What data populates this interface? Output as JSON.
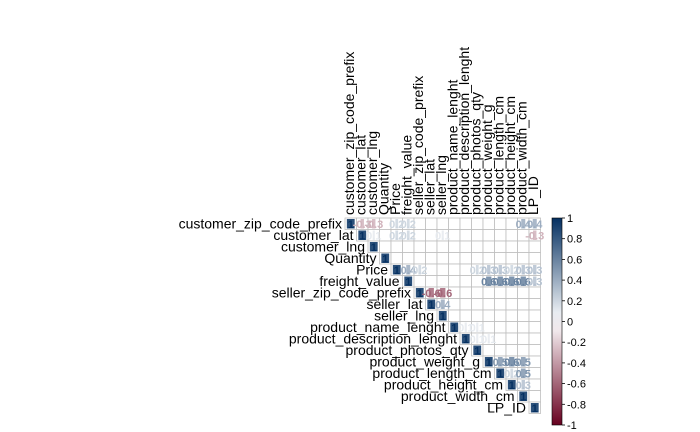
{
  "chart_data": {
    "type": "heatmap",
    "title": "",
    "layout": "upper-triangle",
    "variables": [
      "customer_zip_code_prefix",
      "customer_lat",
      "customer_lng",
      "Quantity",
      "Price",
      "freight_value",
      "seller_zip_code_prefix",
      "seller_lat",
      "seller_lng",
      "product_name_lenght",
      "product_description_lenght",
      "product_photos_qty",
      "product_weight_g",
      "product_length_cm",
      "product_height_cm",
      "product_width_cm",
      "LP_ID"
    ],
    "cells": [
      {
        "row": 0,
        "col": 0,
        "value": 1,
        "label": "1"
      },
      {
        "row": 0,
        "col": 1,
        "value": -0.3,
        "label": "-0.3"
      },
      {
        "row": 0,
        "col": 2,
        "value": -0.3,
        "label": "-0.3"
      },
      {
        "row": 0,
        "col": 4,
        "value": 0.2,
        "label": "0.2"
      },
      {
        "row": 0,
        "col": 5,
        "value": 0.2,
        "label": "0.2"
      },
      {
        "row": 0,
        "col": 15,
        "value": 0.4,
        "label": "0.4"
      },
      {
        "row": 0,
        "col": 16,
        "value": 0.4,
        "label": "0.4"
      },
      {
        "row": 1,
        "col": 1,
        "value": 1,
        "label": "1"
      },
      {
        "row": 1,
        "col": 2,
        "value": 0.1,
        "label": "0.1"
      },
      {
        "row": 1,
        "col": 4,
        "value": 0.2,
        "label": "0.2"
      },
      {
        "row": 1,
        "col": 5,
        "value": 0.2,
        "label": "0.2"
      },
      {
        "row": 1,
        "col": 8,
        "value": 0.1,
        "label": "0.1"
      },
      {
        "row": 1,
        "col": 16,
        "value": -0.3,
        "label": "-0.3"
      },
      {
        "row": 2,
        "col": 2,
        "value": 1,
        "label": "1"
      },
      {
        "row": 3,
        "col": 3,
        "value": 1,
        "label": "1"
      },
      {
        "row": 4,
        "col": 4,
        "value": 1,
        "label": "1"
      },
      {
        "row": 4,
        "col": 5,
        "value": 0.4,
        "label": "0.4"
      },
      {
        "row": 4,
        "col": 6,
        "value": 0.2,
        "label": "0.2"
      },
      {
        "row": 4,
        "col": 11,
        "value": 0.2,
        "label": "0.2"
      },
      {
        "row": 4,
        "col": 12,
        "value": 0.3,
        "label": "0.3"
      },
      {
        "row": 4,
        "col": 13,
        "value": 0.3,
        "label": "0.3"
      },
      {
        "row": 4,
        "col": 14,
        "value": 0.2,
        "label": "0.2"
      },
      {
        "row": 4,
        "col": 15,
        "value": 0.3,
        "label": "0.3"
      },
      {
        "row": 4,
        "col": 16,
        "value": 0.3,
        "label": "0.3"
      },
      {
        "row": 5,
        "col": 5,
        "value": 1,
        "label": "1"
      },
      {
        "row": 5,
        "col": 12,
        "value": 0.6,
        "label": "0.6"
      },
      {
        "row": 5,
        "col": 13,
        "value": 0.6,
        "label": "0.6"
      },
      {
        "row": 5,
        "col": 14,
        "value": 0.6,
        "label": "0.6"
      },
      {
        "row": 5,
        "col": 15,
        "value": 0.6,
        "label": "0.6"
      },
      {
        "row": 5,
        "col": 16,
        "value": 0.3,
        "label": "0.3"
      },
      {
        "row": 6,
        "col": 6,
        "value": 1,
        "label": "1"
      },
      {
        "row": 6,
        "col": 7,
        "value": -0.6,
        "label": "-0.6"
      },
      {
        "row": 6,
        "col": 8,
        "value": -0.6,
        "label": "-0.6"
      },
      {
        "row": 7,
        "col": 7,
        "value": 1,
        "label": "1"
      },
      {
        "row": 7,
        "col": 8,
        "value": 0.4,
        "label": "0.4"
      },
      {
        "row": 8,
        "col": 8,
        "value": 1,
        "label": "1"
      },
      {
        "row": 9,
        "col": 9,
        "value": 1,
        "label": "1"
      },
      {
        "row": 9,
        "col": 10,
        "value": 0.1,
        "label": "0.1"
      },
      {
        "row": 9,
        "col": 11,
        "value": 0.1,
        "label": "0.1"
      },
      {
        "row": 10,
        "col": 10,
        "value": 1,
        "label": "1"
      },
      {
        "row": 10,
        "col": 11,
        "value": 0.1,
        "label": "0.1"
      },
      {
        "row": 10,
        "col": 12,
        "value": 0.1,
        "label": "0.1"
      },
      {
        "row": 11,
        "col": 11,
        "value": 1,
        "label": "1"
      },
      {
        "row": 12,
        "col": 12,
        "value": 1,
        "label": "1"
      },
      {
        "row": 12,
        "col": 13,
        "value": 0.5,
        "label": "0.5"
      },
      {
        "row": 12,
        "col": 14,
        "value": 0.6,
        "label": "0.6"
      },
      {
        "row": 12,
        "col": 15,
        "value": 0.5,
        "label": "0.5"
      },
      {
        "row": 13,
        "col": 13,
        "value": 1,
        "label": "1"
      },
      {
        "row": 13,
        "col": 14,
        "value": 0.2,
        "label": "0.2"
      },
      {
        "row": 13,
        "col": 15,
        "value": 0.5,
        "label": "0.5"
      },
      {
        "row": 14,
        "col": 14,
        "value": 1,
        "label": "1"
      },
      {
        "row": 14,
        "col": 15,
        "value": 0.3,
        "label": "0.3"
      },
      {
        "row": 15,
        "col": 15,
        "value": 1,
        "label": "1"
      },
      {
        "row": 16,
        "col": 16,
        "value": 1,
        "label": "1"
      }
    ],
    "colorbar": {
      "range": [
        -1,
        1
      ],
      "ticks": [
        "1",
        "0.8",
        "0.6",
        "0.4",
        "0.2",
        "0",
        "-0.2",
        "-0.4",
        "-0.6",
        "-0.8",
        "-1"
      ],
      "colors": {
        "negative_end": "#67001f",
        "neutral": "#ffffff",
        "positive_end": "#053061"
      }
    },
    "colors": {
      "grid": "#bfbfbf",
      "label": "#000000"
    }
  }
}
